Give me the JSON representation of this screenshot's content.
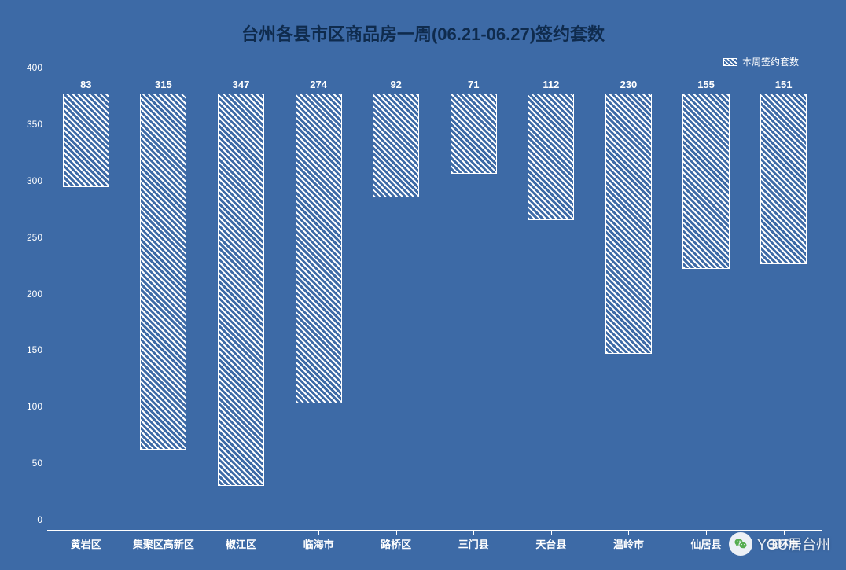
{
  "chart": {
    "type": "bar",
    "title": "台州各县市区商品房一周(06.21-06.27)签约套数",
    "title_fontsize": 22,
    "title_color": "#0f2b4d",
    "background_color": "#3d6aa6",
    "text_color": "#ffffff",
    "legend": {
      "label": "本周签约套数",
      "position": "top-right"
    },
    "y_axis": {
      "min": 0,
      "max": 400,
      "step": 50,
      "ticks": [
        0,
        50,
        100,
        150,
        200,
        250,
        300,
        350,
        400
      ],
      "label_fontsize": 12
    },
    "categories": [
      "黄岩区",
      "集聚区高新区",
      "椒江区",
      "临海市",
      "路桥区",
      "三门县",
      "天台县",
      "温岭市",
      "仙居县",
      "玉环市"
    ],
    "values": [
      83,
      315,
      347,
      274,
      92,
      71,
      112,
      230,
      155,
      151
    ],
    "bar_fill_pattern": "diagonal-hatch",
    "bar_pattern_colors": {
      "line": "#ffffff",
      "gap": "#3d6aa6"
    },
    "bar_border_color": "#ffffff",
    "bar_width_ratio": 0.6,
    "value_label_color": "#ffffff",
    "value_label_fontsize": 13,
    "x_label_fontsize": 13
  },
  "watermark": {
    "text": "YOU居台州",
    "icon": "wechat-icon"
  }
}
